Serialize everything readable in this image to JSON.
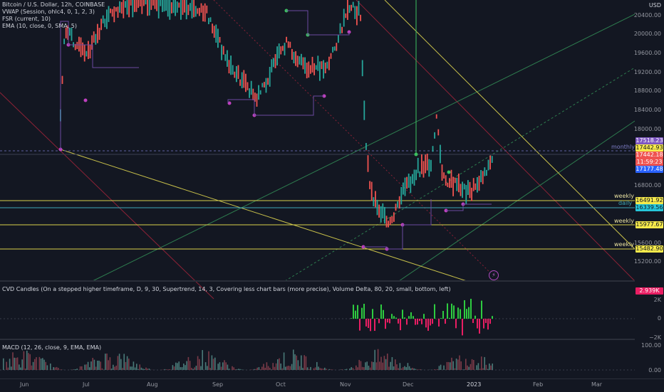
{
  "legend": {
    "symbol": "Bitcoin / U.S. Dollar, 12h, COINBASE",
    "vwap": "VWAP (Session, ohlc4, 0, 1, 2, 3)",
    "fsr": "FSR (current, 10)",
    "ema": "EMA (10, close, 0, SMA, 5)",
    "cvd": "CVD Candles (On a stepped higher timeframe, D, 9, 30, Supertrend, 14, 3, Covering less chart bars (more precise), Volume Delta, 80, 20, small, bottom, left)",
    "macd": "MACD (12, 26, close, 9, EMA, EMA)"
  },
  "price_axis": {
    "currency": "USD",
    "ticks": [
      "20400.00",
      "20000.00",
      "19600.00",
      "19200.00",
      "18800.00",
      "18400.00",
      "18000.00",
      "16800.00",
      "15600.00",
      "15200.00"
    ]
  },
  "price_tags": [
    {
      "text": "17518.23",
      "color": "#7e57c2"
    },
    {
      "text": "17442.93",
      "color": "#f5e94b"
    },
    {
      "text": "17442.18",
      "color": "#ef5350"
    },
    {
      "text": "11:59:23",
      "color": "#ef5350"
    },
    {
      "text": "17177.48",
      "color": "#2962ff"
    },
    {
      "text": "16491.92",
      "color": "#f5e94b"
    },
    {
      "text": "16339.56",
      "color": "#26c6da"
    },
    {
      "text": "15977.67",
      "color": "#f5e94b"
    },
    {
      "text": "15482.90",
      "color": "#f5e94b"
    }
  ],
  "level_labels": {
    "monthly": "monthly",
    "weekly1": "weekly",
    "daily": "daily",
    "weekly2": "weekly",
    "weekly3": "weekly"
  },
  "cvd_axis": {
    "tag": "2.939K",
    "tag_color": "#e91e63",
    "t1": "2K",
    "t2": "0",
    "t3": "−2K"
  },
  "macd_axis": {
    "t1": "100.00",
    "t2": "0.00"
  },
  "time_axis": [
    "Jun",
    "Jul",
    "Aug",
    "Sep",
    "Oct",
    "Nov",
    "Dec",
    "2023",
    "Feb",
    "Mar"
  ],
  "icon": "lightning-icon"
}
